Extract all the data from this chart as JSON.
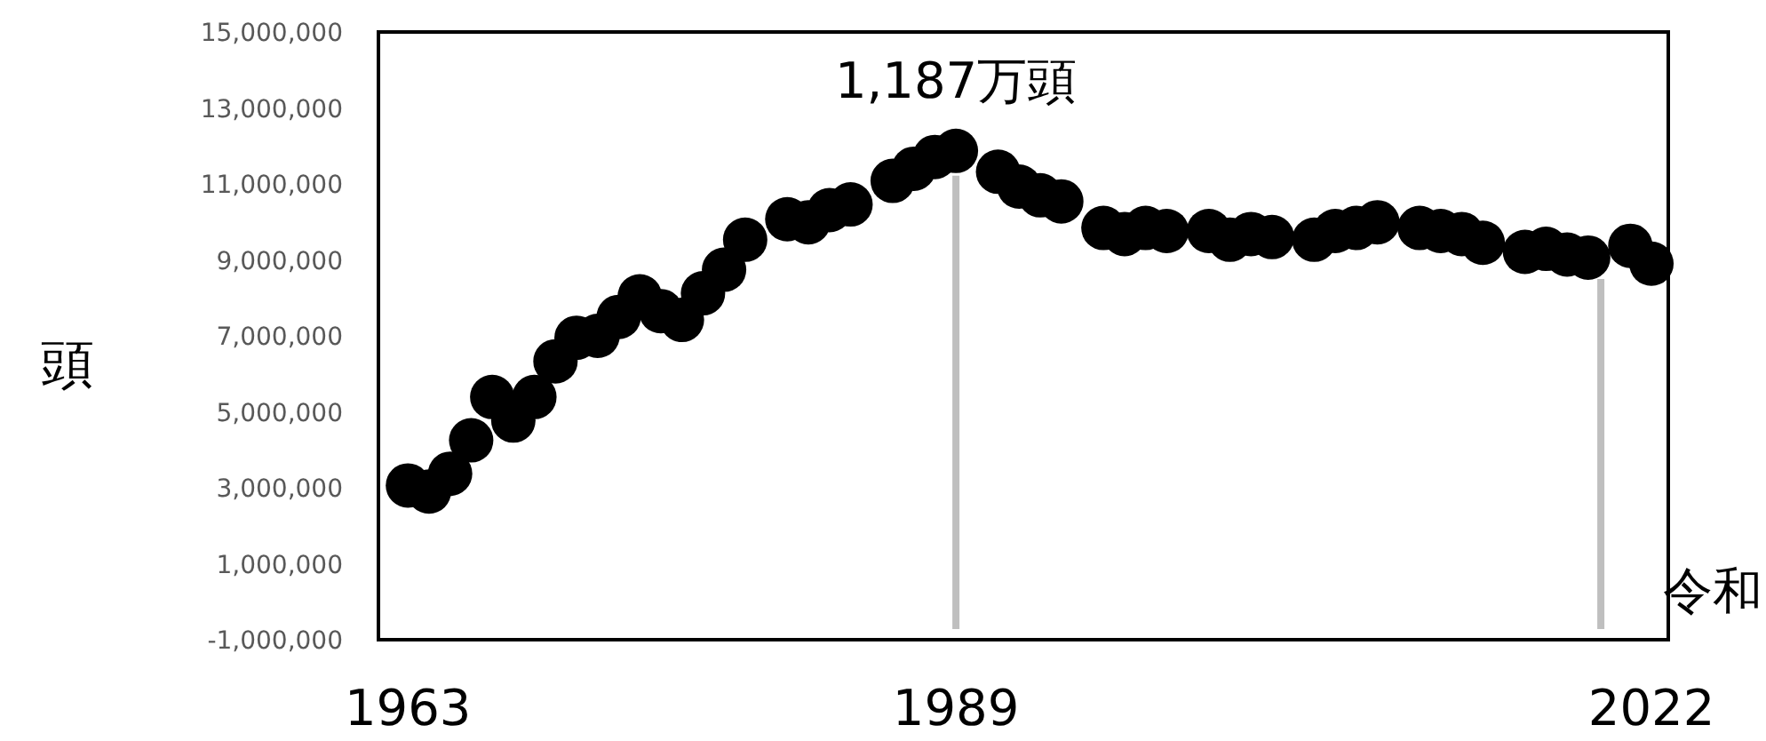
{
  "chart_data": {
    "type": "scatter",
    "ylabel": "頭",
    "marker": "circle",
    "grid": false,
    "ref_lines": [
      {
        "axis": "x",
        "value": 1989,
        "color": "#bfbfbf"
      },
      {
        "axis": "x",
        "value": 2019.6,
        "color": "#bfbfbf"
      }
    ],
    "xlim": [
      1961.6,
      2022.8
    ],
    "xticks": [
      1963,
      1989,
      2022
    ],
    "ylim": [
      -1000000,
      15000000
    ],
    "yticks": [
      {
        "value": -1000000,
        "label": "-1,000,000"
      },
      {
        "value": 1000000,
        "label": "1,000,000"
      },
      {
        "value": 3000000,
        "label": "3,000,000"
      },
      {
        "value": 5000000,
        "label": "5,000,000"
      },
      {
        "value": 7000000,
        "label": "7,000,000"
      },
      {
        "value": 9000000,
        "label": "9,000,000"
      },
      {
        "value": 11000000,
        "label": "11,000,000"
      },
      {
        "value": 13000000,
        "label": "13,000,000"
      },
      {
        "value": 15000000,
        "label": "15,000,000"
      }
    ],
    "annotations": [
      {
        "text": "1,187万頭",
        "x": 1989,
        "y": 11870000
      },
      "令和"
    ],
    "series": [
      {
        "color": "#000000",
        "x": [
          1963,
          1964,
          1965,
          1966,
          1967,
          1968,
          1969,
          1970,
          1971,
          1972,
          1973,
          1974,
          1975,
          1976,
          1977,
          1978,
          1979,
          1981,
          1982,
          1983,
          1984,
          1986,
          1987,
          1988,
          1989,
          1991,
          1992,
          1993,
          1994,
          1996,
          1997,
          1998,
          1999,
          2001,
          2002,
          2003,
          2004,
          2006,
          2007,
          2008,
          2009,
          2011,
          2012,
          2013,
          2014,
          2016,
          2017,
          2018,
          2019,
          2021,
          2022
        ],
        "values": [
          3060000,
          2900000,
          3370000,
          4250000,
          5390000,
          4770000,
          5390000,
          6330000,
          6950000,
          7000000,
          7500000,
          8040000,
          7650000,
          7420000,
          8120000,
          8740000,
          9530000,
          10070000,
          9990000,
          10310000,
          10460000,
          11080000,
          11400000,
          11710000,
          11870000,
          11320000,
          10930000,
          10700000,
          10540000,
          9840000,
          9680000,
          9840000,
          9760000,
          9760000,
          9530000,
          9680000,
          9600000,
          9530000,
          9760000,
          9840000,
          9990000,
          9840000,
          9760000,
          9680000,
          9450000,
          9210000,
          9290000,
          9140000,
          9060000,
          9370000,
          8900000
        ]
      }
    ]
  }
}
